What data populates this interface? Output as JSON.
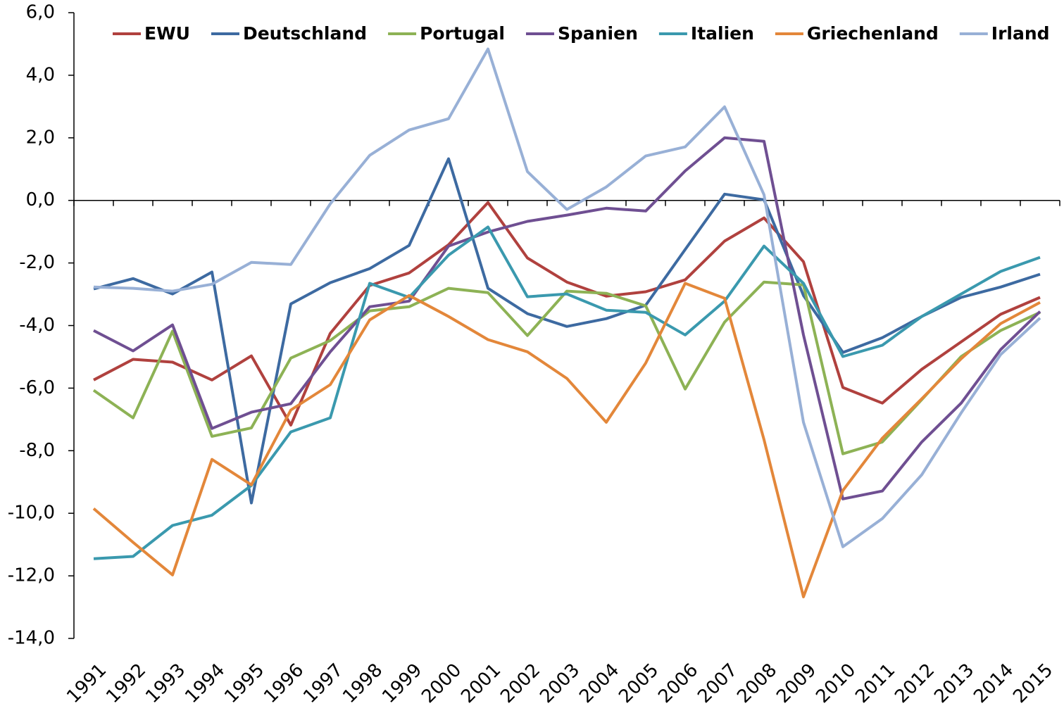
{
  "chart_data": {
    "type": "line",
    "categories": [
      "1991",
      "1992",
      "1993",
      "1994",
      "1995",
      "1996",
      "1997",
      "1998",
      "1999",
      "2000",
      "2001",
      "2002",
      "2003",
      "2004",
      "2005",
      "2006",
      "2007",
      "2008",
      "2009",
      "2010",
      "2011",
      "2012",
      "2013",
      "2014",
      "2015"
    ],
    "ylim": [
      -14,
      6
    ],
    "yticks": [
      {
        "value": -14,
        "label": "-14,0"
      },
      {
        "value": -12,
        "label": "-12,0"
      },
      {
        "value": -10,
        "label": "-10,0"
      },
      {
        "value": -8,
        "label": "-8,0"
      },
      {
        "value": -6,
        "label": "-6,0"
      },
      {
        "value": -4,
        "label": "-4,0"
      },
      {
        "value": -2,
        "label": "-2,0"
      },
      {
        "value": 0,
        "label": "0,0"
      },
      {
        "value": 2,
        "label": "2,0"
      },
      {
        "value": 4,
        "label": "4,0"
      },
      {
        "value": 6,
        "label": "6,0"
      }
    ],
    "series": [
      {
        "name": "EWU",
        "color": "#b0413e",
        "values": [
          -5.74,
          -5.08,
          -5.17,
          -5.74,
          -4.97,
          -7.18,
          -4.25,
          -2.72,
          -2.32,
          -1.42,
          -0.07,
          -1.84,
          -2.61,
          -3.06,
          -2.92,
          -2.54,
          -1.3,
          -0.56,
          -1.96,
          -5.98,
          -6.48,
          -5.4,
          -4.52,
          -3.64,
          -3.1
        ]
      },
      {
        "name": "Deutschland",
        "color": "#3d6aa1",
        "values": [
          -2.83,
          -2.5,
          -2.99,
          -2.29,
          -9.67,
          -3.31,
          -2.63,
          -2.18,
          -1.44,
          1.33,
          -2.81,
          -3.62,
          -4.03,
          -3.78,
          -3.35,
          -1.57,
          0.2,
          0.02,
          -3.04,
          -4.86,
          -4.39,
          -3.71,
          -3.1,
          -2.77,
          -2.36
        ]
      },
      {
        "name": "Portugal",
        "color": "#8db255",
        "values": [
          -6.07,
          -6.95,
          -4.18,
          -7.54,
          -7.27,
          -5.04,
          -4.48,
          -3.53,
          -3.4,
          -2.81,
          -2.95,
          -4.32,
          -2.9,
          -2.97,
          -3.37,
          -6.03,
          -3.89,
          -2.61,
          -2.7,
          -8.1,
          -7.72,
          -6.37,
          -4.99,
          -4.16,
          -3.58
        ]
      },
      {
        "name": "Spanien",
        "color": "#6f4f92",
        "values": [
          -4.16,
          -4.81,
          -3.98,
          -7.29,
          -6.77,
          -6.5,
          -4.84,
          -3.4,
          -3.22,
          -1.46,
          -1.01,
          -0.67,
          -0.47,
          -0.25,
          -0.34,
          0.94,
          2.0,
          1.89,
          -4.3,
          -9.54,
          -9.29,
          -7.72,
          -6.48,
          -4.77,
          -3.55
        ]
      },
      {
        "name": "Italien",
        "color": "#3a99ae",
        "values": [
          -11.45,
          -11.38,
          -10.39,
          -10.06,
          -9.11,
          -7.4,
          -6.95,
          -2.65,
          -3.1,
          -1.75,
          -0.85,
          -3.08,
          -2.99,
          -3.51,
          -3.58,
          -4.3,
          -3.22,
          -1.46,
          -2.65,
          -4.99,
          -4.63,
          -3.71,
          -2.99,
          -2.27,
          -1.82
        ]
      },
      {
        "name": "Griechenland",
        "color": "#e3873a",
        "values": [
          -9.85,
          -10.93,
          -11.97,
          -8.28,
          -9.09,
          -6.7,
          -5.89,
          -3.82,
          -3.04,
          -3.71,
          -4.45,
          -4.84,
          -5.69,
          -7.09,
          -5.2,
          -2.65,
          -3.13,
          -7.65,
          -12.67,
          -9.27,
          -7.6,
          -6.34,
          -5.06,
          -3.94,
          -3.26
        ]
      },
      {
        "name": "Irland",
        "color": "#98b0d6",
        "values": [
          -2.77,
          -2.81,
          -2.9,
          -2.68,
          -1.98,
          -2.05,
          -0.11,
          1.44,
          2.25,
          2.61,
          4.84,
          0.92,
          -0.29,
          0.43,
          1.42,
          1.71,
          2.99,
          0.18,
          -7.09,
          -11.07,
          -10.17,
          -8.77,
          -6.79,
          -4.93,
          -3.76
        ]
      }
    ]
  }
}
